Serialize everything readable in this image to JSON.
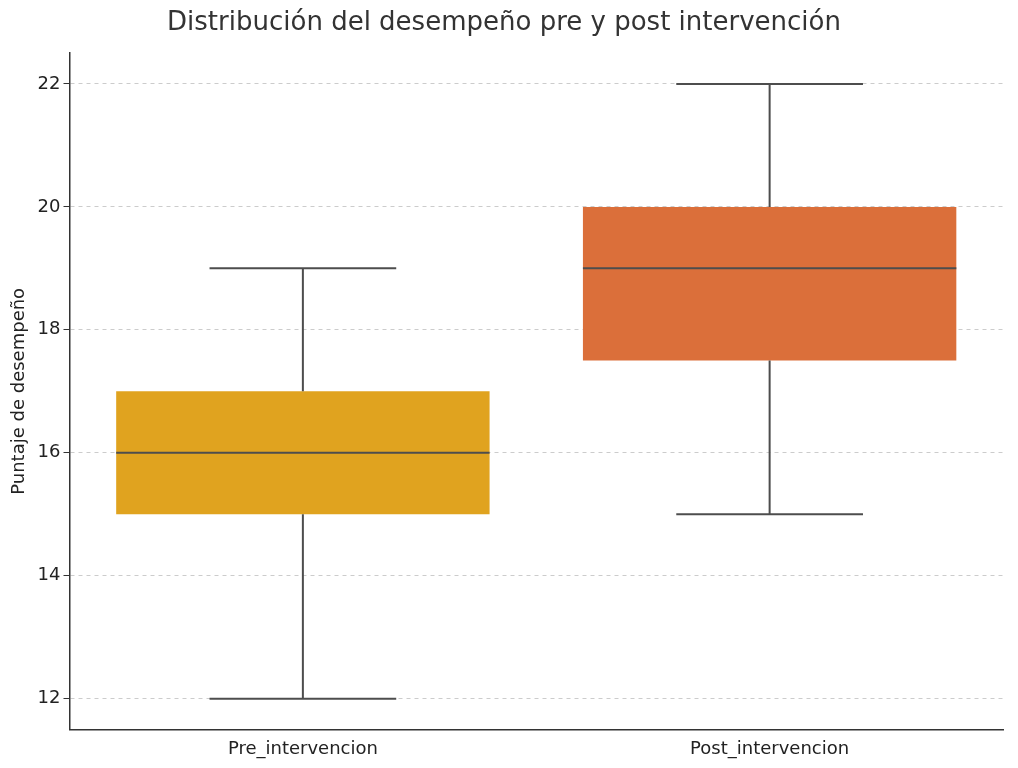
{
  "chart_data": {
    "type": "box",
    "title": "Distribución del desempeño pre y post intervención",
    "ylabel": "Puntaje de desempeño",
    "categories": [
      "Pre_intervencion",
      "Post_intervencion"
    ],
    "colors": [
      "#e0a31f",
      "#db6f3a"
    ],
    "boxes": [
      {
        "low": 12,
        "q1": 15,
        "median": 16,
        "q3": 17,
        "high": 19
      },
      {
        "low": 15,
        "q1": 17.5,
        "median": 19,
        "q3": 20,
        "high": 22
      }
    ],
    "ylim": [
      11.5,
      22.5
    ],
    "yticks": [
      12,
      14,
      16,
      18,
      20,
      22
    ],
    "grid": "y"
  }
}
